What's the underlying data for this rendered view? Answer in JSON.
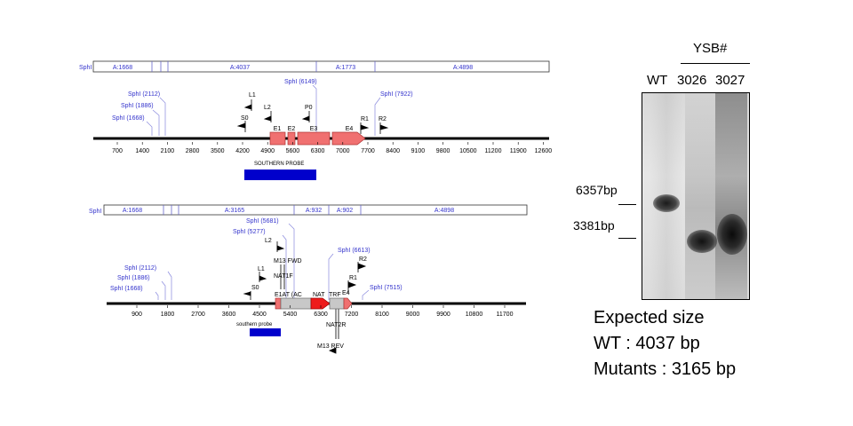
{
  "map_top": {
    "fragment_bar": {
      "enzyme": "SphI",
      "segments": [
        "A:1668",
        "A:4037",
        "A:1773",
        "A:4898"
      ]
    },
    "site_labels": [
      "SphI (2112)",
      "SphI (1886)",
      "SphI (1668)",
      "SphI (6149)",
      "SphI (7922)"
    ],
    "primers": [
      "L1",
      "L2",
      "S0",
      "P0",
      "R1",
      "R2"
    ],
    "exons": [
      "E1",
      "E2",
      "E3",
      "E4"
    ],
    "axis_ticks": [
      "700",
      "1400",
      "2100",
      "2800",
      "3500",
      "4200",
      "4900",
      "5600",
      "6300",
      "7000",
      "7700",
      "8400",
      "9100",
      "9800",
      "10500",
      "11200",
      "11900",
      "12600"
    ],
    "probe_label": "SOUTHERN PROBE"
  },
  "map_bottom": {
    "fragment_bar": {
      "enzyme": "SphI",
      "segments": [
        "A:1668",
        "A:3165",
        "A:932",
        "A:902",
        "A:4898"
      ]
    },
    "site_labels": [
      "SphI (5681)",
      "SphI (5277)",
      "SphI (6613)",
      "SphI (2112)",
      "SphI (1886)",
      "SphI (1668)",
      "SphI (7515)"
    ],
    "primers": [
      "L2",
      "M13 FWD",
      "L1",
      "NAT1F",
      "S0",
      "R2",
      "R1",
      "E4",
      "NAT2R",
      "M13 REV"
    ],
    "feature_labels": [
      "E1AT (AC",
      "NAT",
      "TRF"
    ],
    "axis_ticks": [
      "900",
      "1800",
      "2700",
      "3600",
      "4500",
      "5400",
      "6300",
      "7200",
      "8100",
      "9000",
      "9900",
      "10800",
      "11700"
    ],
    "probe_label": "southern probe"
  },
  "blot": {
    "group_label": "YSB#",
    "lanes": [
      "WT",
      "3026",
      "3027"
    ],
    "markers": [
      "6357bp",
      "3381bp"
    ]
  },
  "expected": {
    "title": "Expected size",
    "wt": "WT : 4037 bp",
    "mutants": "Mutants : 3165 bp"
  },
  "colors": {
    "site_blue": "#3333cc",
    "exon_red": "#f07070",
    "nat_red": "#ee1c1c",
    "probe_blue": "#0000cc"
  }
}
